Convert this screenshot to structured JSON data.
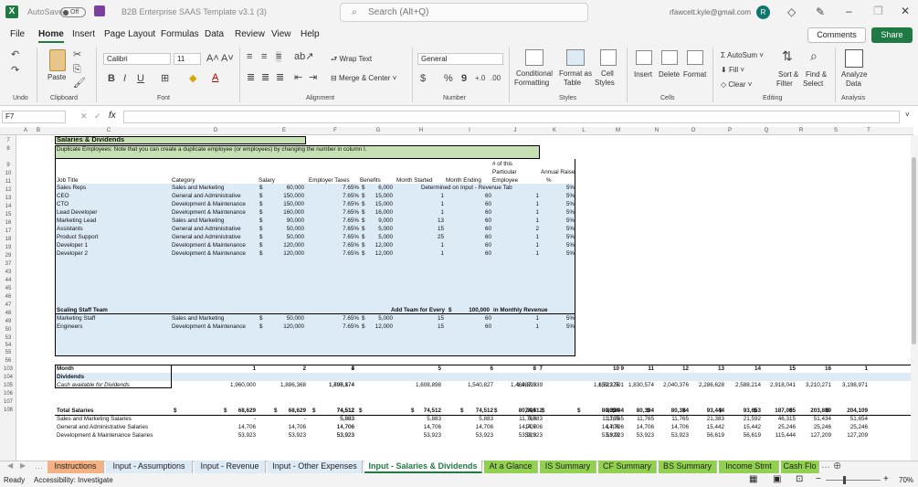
{
  "titlebar": {
    "autosave": "AutoSave",
    "toggle": "Off",
    "title": "B2B Enterprise SAAS Template v3.1 (3)",
    "search_placeholder": "Search (Alt+Q)",
    "user_email": "rfawcett.kyle@gmail.com",
    "avatar_letter": "R"
  },
  "menu": [
    "File",
    "Home",
    "Insert",
    "Page Layout",
    "Formulas",
    "Data",
    "Review",
    "View",
    "Help"
  ],
  "active_menu": "Home",
  "comments_label": "Comments",
  "share_label": "Share",
  "ribbon": {
    "undo_label": "Undo",
    "paste_label": "Paste",
    "clipboard_label": "Clipboard",
    "font_name": "Calibri",
    "font_size": "11",
    "font_label": "Font",
    "wrap_text": "Wrap Text",
    "merge_center": "Merge & Center",
    "alignment_label": "Alignment",
    "number_format": "General",
    "number_label": "Number",
    "cond_format": [
      "Conditional",
      "Formatting"
    ],
    "format_table": [
      "Format as",
      "Table"
    ],
    "cell_styles": [
      "Cell",
      "Styles"
    ],
    "styles_label": "Styles",
    "insert": "Insert",
    "delete": "Delete",
    "format": "Format",
    "cells_label": "Cells",
    "autosum": "AutoSum",
    "fill": "Fill",
    "clear": "Clear",
    "sort_filter": [
      "Sort &",
      "Filter"
    ],
    "find_select": [
      "Find &",
      "Select"
    ],
    "editing_label": "Editing",
    "analyze": [
      "Analyze",
      "Data"
    ],
    "analysis_label": "Analysis"
  },
  "formula_bar": {
    "name_box": "F7",
    "fx": "fx"
  },
  "columns": [
    "A",
    "B",
    "C",
    "D",
    "E",
    "F",
    "G",
    "H",
    "I",
    "J",
    "K",
    "L",
    "M",
    "N",
    "O",
    "P",
    "Q",
    "R",
    "S",
    "T"
  ],
  "rows": [
    "7",
    "8",
    "9",
    "10",
    "11",
    "12",
    "13",
    "14",
    "15",
    "16",
    "17",
    "18",
    "19",
    "29",
    "37",
    "43",
    "44",
    "45",
    "46",
    "47",
    "48",
    "49",
    "50",
    "53",
    "54",
    "55",
    "56",
    "103",
    "104",
    "105",
    "106",
    "107",
    "108"
  ],
  "sheet": {
    "title": "Salaries & Dividends",
    "note": "Duplicate Employees: Note that you can create a duplicate employee (or employees) by changing the number in column I.",
    "headers": {
      "job_title": "Job Title",
      "category": "Category",
      "salary": "Salary",
      "employer_taxes": "Employer Taxes",
      "benefits": "Benefits",
      "month_started": "Month Started",
      "month_ending": "Month Ending",
      "num_employee": [
        "# of this",
        "Particular",
        "Employee"
      ],
      "annual_raise": [
        "Annual Raise",
        "%"
      ]
    },
    "employees": [
      {
        "title": "Sales Reps",
        "category": "Sales and Marketing",
        "cur": "$",
        "salary": "60,000",
        "tax": "7.65%",
        "bcur": "$",
        "benefits": "6,000",
        "start": "Determined on Input - Revenue Tab",
        "end": "",
        "count": "",
        "raise": "5%"
      },
      {
        "title": "CEO",
        "category": "General and Administrative",
        "cur": "$",
        "salary": "150,000",
        "tax": "7.65%",
        "bcur": "$",
        "benefits": "15,000",
        "start": "1",
        "end": "60",
        "count": "1",
        "raise": "5%"
      },
      {
        "title": "CTO",
        "category": "Development & Maintenance",
        "cur": "$",
        "salary": "150,000",
        "tax": "7.65%",
        "bcur": "$",
        "benefits": "15,000",
        "start": "1",
        "end": "60",
        "count": "1",
        "raise": "5%"
      },
      {
        "title": "Lead Developer",
        "category": "Development & Maintenance",
        "cur": "$",
        "salary": "160,000",
        "tax": "7.65%",
        "bcur": "$",
        "benefits": "16,000",
        "start": "1",
        "end": "60",
        "count": "1",
        "raise": "5%"
      },
      {
        "title": "Marketing Lead",
        "category": "Sales and Marketing",
        "cur": "$",
        "salary": "90,000",
        "tax": "7.65%",
        "bcur": "$",
        "benefits": "9,000",
        "start": "13",
        "end": "60",
        "count": "1",
        "raise": "5%"
      },
      {
        "title": "Assistants",
        "category": "General and Administrative",
        "cur": "$",
        "salary": "50,000",
        "tax": "7.65%",
        "bcur": "$",
        "benefits": "5,000",
        "start": "15",
        "end": "60",
        "count": "2",
        "raise": "5%"
      },
      {
        "title": "Product Support",
        "category": "General and Administrative",
        "cur": "$",
        "salary": "50,000",
        "tax": "7.65%",
        "bcur": "$",
        "benefits": "5,000",
        "start": "25",
        "end": "60",
        "count": "1",
        "raise": "5%"
      },
      {
        "title": "Developer 1",
        "category": "Development & Maintenance",
        "cur": "$",
        "salary": "120,000",
        "tax": "7.65%",
        "bcur": "$",
        "benefits": "12,000",
        "start": "1",
        "end": "60",
        "count": "1",
        "raise": "5%"
      },
      {
        "title": "Developer 2",
        "category": "Development & Maintenance",
        "cur": "$",
        "salary": "120,000",
        "tax": "7.65%",
        "bcur": "$",
        "benefits": "12,000",
        "start": "1",
        "end": "60",
        "count": "1",
        "raise": "5%"
      }
    ],
    "scaling": {
      "label": "Scaling Staff Team",
      "add_team": "Add Team for Every",
      "cur": "$",
      "amount": "100,000",
      "in_monthly": "in Monthly Revenue"
    },
    "scaling_staff": [
      {
        "title": "Marketing Staff",
        "category": "Sales and Marketing",
        "cur": "$",
        "salary": "50,000",
        "tax": "7.65%",
        "bcur": "$",
        "benefits": "5,000",
        "start": "15",
        "end": "60",
        "count": "1",
        "raise": "5%"
      },
      {
        "title": "Engineers",
        "category": "Development & Maintenance",
        "cur": "$",
        "salary": "120,000",
        "tax": "7.65%",
        "bcur": "$",
        "benefits": "12,000",
        "start": "15",
        "end": "60",
        "count": "1",
        "raise": "5%"
      }
    ],
    "month_label": "Month",
    "months": [
      "1",
      "2",
      "3",
      "4",
      "5",
      "6",
      "7",
      "8",
      "9",
      "10",
      "11",
      "12",
      "13",
      "14",
      "15",
      "16",
      "1"
    ],
    "dividends_label": "Dividends",
    "cash_label": "Cash available for Dividends",
    "cash": [
      "1,960,000",
      "1,886,368",
      "1,795,174",
      "1,698,874",
      "1,608,898",
      "1,540,827",
      "1,487,939",
      "1,469,393",
      "1,523,501",
      "1,659,275",
      "1,830,574",
      "2,040,376",
      "2,286,628",
      "2,588,214",
      "2,918,041",
      "3,210,271",
      "3,198,971"
    ],
    "total_label": "Total Salaries",
    "totals": [
      "68,629",
      "68,629",
      "74,512",
      "74,512",
      "74,512",
      "74,512",
      "74,512",
      "80,394",
      "80,394",
      "80,394",
      "80,394",
      "80,394",
      "93,444",
      "93,653",
      "187,005",
      "203,889",
      "204,109"
    ],
    "total_dollar_cols": [
      true,
      true,
      true,
      true,
      true,
      true,
      true,
      true,
      true,
      true,
      true,
      true,
      true,
      true,
      true,
      true,
      true
    ],
    "sm_label": "Sales and Marketing Salaries",
    "sm": [
      "-",
      "-",
      "5,883",
      "5,883",
      "5,883",
      "5,883",
      "5,883",
      "11,765",
      "11,765",
      "11,765",
      "11,765",
      "11,765",
      "21,383",
      "21,592",
      "46,315",
      "51,434",
      "51,654"
    ],
    "ga_label": "General and Administrative Salaries",
    "ga": [
      "14,706",
      "14,706",
      "14,706",
      "14,706",
      "14,706",
      "14,706",
      "14,706",
      "14,706",
      "14,706",
      "14,706",
      "14,706",
      "14,706",
      "15,442",
      "15,442",
      "25,246",
      "25,246",
      "25,246"
    ],
    "dm_label": "Development & Maintenance Salaries",
    "dm": [
      "53,923",
      "53,923",
      "53,923",
      "53,923",
      "53,923",
      "53,923",
      "53,923",
      "53,923",
      "53,923",
      "53,923",
      "53,923",
      "53,923",
      "56,619",
      "56,619",
      "115,444",
      "127,209",
      "127,209"
    ]
  },
  "tabs": [
    {
      "label": "Instructions",
      "bg": "#f4b183"
    },
    {
      "label": "Input - Assumptions",
      "bg": "#ddebf7"
    },
    {
      "label": "Input - Revenue",
      "bg": "#ddebf7"
    },
    {
      "label": "Input - Other Expenses",
      "bg": "#ddebf7"
    },
    {
      "label": "Input - Salaries & Dividends",
      "bg": "#ffffff"
    },
    {
      "label": "At a Glance",
      "bg": "#92d050"
    },
    {
      "label": "IS Summary",
      "bg": "#92d050"
    },
    {
      "label": "CF Summary",
      "bg": "#92d050"
    },
    {
      "label": "BS Summary",
      "bg": "#92d050"
    },
    {
      "label": "Income Stmt",
      "bg": "#92d050"
    },
    {
      "label": "Cash Flo",
      "bg": "#92d050"
    }
  ],
  "status": {
    "ready": "Ready",
    "accessibility": "Accessibility: Investigate",
    "zoom": "70%"
  },
  "colors": {
    "excel_green": "#1f7a43",
    "input_blue": "#ddebf7",
    "note_green": "#c6e0b4",
    "header_gray": "#f2f2f2"
  }
}
